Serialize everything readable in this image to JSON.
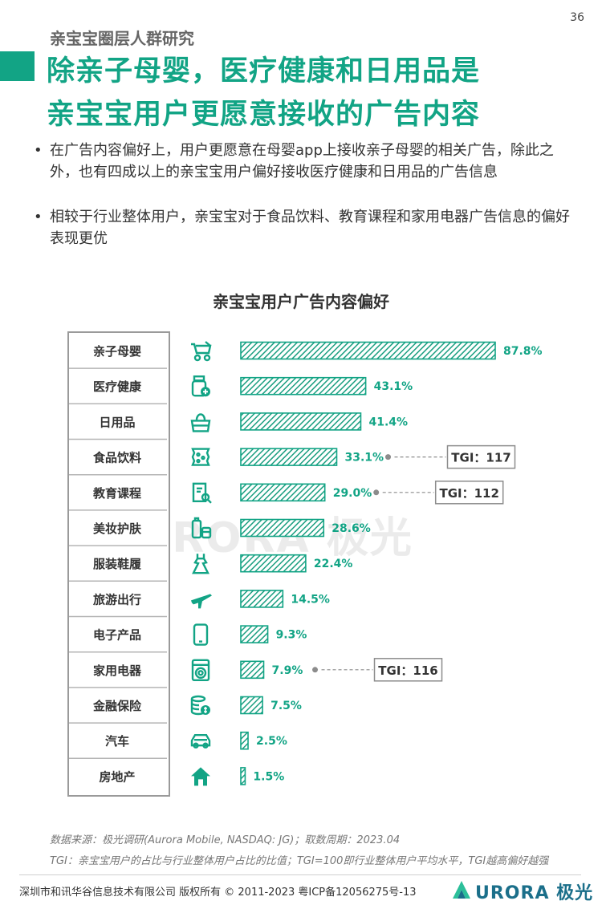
{
  "page_number": "36",
  "section_label": "亲宝宝圈层人群研究",
  "title_lines": [
    "除亲子母婴，医疗健康和日用品是",
    "亲宝宝用户更愿意接收的广告内容"
  ],
  "bullets": [
    "在广告内容偏好上，用户更愿意在母婴app上接收亲子母婴的相关广告，除此之外，也有四成以上的亲宝宝用户偏好接收医疗健康和日用品的广告信息",
    "相较于行业整体用户，亲宝宝对于食品饮料、教育课程和家用电器广告信息的偏好表现更优"
  ],
  "colors": {
    "accent": "#12a485",
    "bar_stripe": "#1a9e80",
    "tgi_border": "#8c8c8c"
  },
  "watermark": "URORA 极光",
  "chart_data": {
    "type": "bar",
    "orientation": "horizontal",
    "title": "亲宝宝用户广告内容偏好",
    "categories": [
      "亲子母婴",
      "医疗健康",
      "日用品",
      "食品饮料",
      "教育课程",
      "美妆护肤",
      "服装鞋履",
      "旅游出行",
      "电子产品",
      "家用电器",
      "金融保险",
      "汽车",
      "房地产"
    ],
    "values": [
      87.8,
      43.1,
      41.4,
      33.1,
      29.0,
      28.6,
      22.4,
      14.5,
      9.3,
      7.9,
      7.5,
      2.5,
      1.5
    ],
    "value_labels": [
      "87.8%",
      "43.1%",
      "41.4%",
      "33.1%",
      "29.0%",
      "28.6%",
      "22.4%",
      "14.5%",
      "9.3%",
      "7.9%",
      "7.5%",
      "2.5%",
      "1.5%"
    ],
    "icons": [
      "stroller-icon",
      "medicine-icon",
      "bag-icon",
      "snack-icon",
      "book-icon",
      "cosmetics-icon",
      "dress-icon",
      "airplane-icon",
      "phone-icon",
      "washing-machine-icon",
      "coins-icon",
      "car-icon",
      "house-icon"
    ],
    "tgi": [
      {
        "category": "食品饮料",
        "label": "TGI：117"
      },
      {
        "category": "教育课程",
        "label": "TGI：112"
      },
      {
        "category": "家用电器",
        "label": "TGI：116"
      }
    ],
    "xlim": [
      0,
      100
    ],
    "grid": false,
    "legend": "none"
  },
  "source_lines": [
    "数据来源：极光调研(Aurora Mobile, NASDAQ: JG)；取数周期：2023.04",
    "TGI：亲宝宝用户的占比与行业整体用户占比的比值；TGI=100即行业整体用户平均水平，TGI越高偏好越强"
  ],
  "footer": "深圳市和讯华谷信息技术有限公司 版权所有 © 2011-2023 粤ICP备12056275号-13",
  "logo_text": "URORA 极光"
}
